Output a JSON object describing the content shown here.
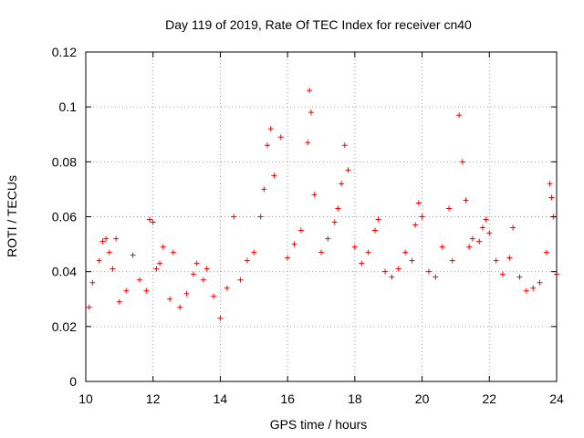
{
  "chart_data": {
    "type": "scatter",
    "title": "Day 119 of 2019, Rate Of TEC Index for receiver cn40",
    "xlabel": "GPS time / hours",
    "ylabel": "ROTI / TECUs",
    "xlim": [
      10,
      24
    ],
    "ylim": [
      0,
      0.12
    ],
    "xticks": [
      10,
      12,
      14,
      16,
      18,
      20,
      22,
      24
    ],
    "xtick_labels": [
      "10",
      "12",
      "14",
      "16",
      "18",
      "20",
      "22",
      "24"
    ],
    "yticks": [
      0,
      0.02,
      0.04,
      0.06,
      0.08,
      0.1,
      0.12
    ],
    "ytick_labels": [
      "0",
      "0.02",
      "0.04",
      "0.06",
      "0.08",
      "0.1",
      "0.12"
    ],
    "grid": true,
    "marker": "plus",
    "series": [
      {
        "name": "ROTI",
        "color": "#ff0000",
        "points": [
          [
            10.1,
            0.027
          ],
          [
            10.2,
            0.036
          ],
          [
            10.4,
            0.044
          ],
          [
            10.5,
            0.051
          ],
          [
            10.6,
            0.052
          ],
          [
            10.7,
            0.047
          ],
          [
            10.8,
            0.041
          ],
          [
            10.9,
            0.052
          ],
          [
            11.0,
            0.029
          ],
          [
            11.2,
            0.033
          ],
          [
            11.4,
            0.046
          ],
          [
            11.6,
            0.037
          ],
          [
            11.8,
            0.033
          ],
          [
            11.9,
            0.059
          ],
          [
            12.0,
            0.058
          ],
          [
            12.1,
            0.041
          ],
          [
            12.2,
            0.043
          ],
          [
            12.3,
            0.049
          ],
          [
            12.5,
            0.03
          ],
          [
            12.6,
            0.047
          ],
          [
            12.8,
            0.027
          ],
          [
            13.0,
            0.032
          ],
          [
            13.2,
            0.039
          ],
          [
            13.3,
            0.043
          ],
          [
            13.5,
            0.037
          ],
          [
            13.6,
            0.041
          ],
          [
            13.8,
            0.031
          ],
          [
            14.0,
            0.023
          ],
          [
            14.2,
            0.034
          ],
          [
            14.4,
            0.06
          ],
          [
            14.6,
            0.037
          ],
          [
            14.8,
            0.044
          ],
          [
            15.0,
            0.047
          ],
          [
            15.2,
            0.06
          ],
          [
            15.3,
            0.07
          ],
          [
            15.4,
            0.086
          ],
          [
            15.5,
            0.092
          ],
          [
            15.6,
            0.075
          ],
          [
            15.8,
            0.089
          ],
          [
            16.0,
            0.045
          ],
          [
            16.2,
            0.05
          ],
          [
            16.4,
            0.055
          ],
          [
            16.6,
            0.087
          ],
          [
            16.65,
            0.106
          ],
          [
            16.7,
            0.098
          ],
          [
            16.8,
            0.068
          ],
          [
            17.0,
            0.047
          ],
          [
            17.2,
            0.052
          ],
          [
            17.4,
            0.058
          ],
          [
            17.5,
            0.063
          ],
          [
            17.6,
            0.072
          ],
          [
            17.7,
            0.086
          ],
          [
            17.8,
            0.077
          ],
          [
            18.0,
            0.049
          ],
          [
            18.2,
            0.043
          ],
          [
            18.4,
            0.047
          ],
          [
            18.6,
            0.055
          ],
          [
            18.7,
            0.059
          ],
          [
            18.9,
            0.04
          ],
          [
            19.1,
            0.038
          ],
          [
            19.3,
            0.041
          ],
          [
            19.5,
            0.047
          ],
          [
            19.7,
            0.044
          ],
          [
            19.8,
            0.057
          ],
          [
            19.9,
            0.065
          ],
          [
            20.0,
            0.06
          ],
          [
            20.2,
            0.04
          ],
          [
            20.4,
            0.038
          ],
          [
            20.6,
            0.049
          ],
          [
            20.8,
            0.063
          ],
          [
            20.9,
            0.044
          ],
          [
            21.1,
            0.097
          ],
          [
            21.2,
            0.08
          ],
          [
            21.3,
            0.066
          ],
          [
            21.4,
            0.049
          ],
          [
            21.5,
            0.052
          ],
          [
            21.7,
            0.051
          ],
          [
            21.8,
            0.056
          ],
          [
            21.9,
            0.059
          ],
          [
            22.0,
            0.054
          ],
          [
            22.2,
            0.044
          ],
          [
            22.4,
            0.039
          ],
          [
            22.6,
            0.045
          ],
          [
            22.7,
            0.056
          ],
          [
            22.9,
            0.038
          ],
          [
            23.1,
            0.033
          ],
          [
            23.3,
            0.034
          ],
          [
            23.5,
            0.036
          ],
          [
            23.7,
            0.047
          ],
          [
            23.8,
            0.072
          ],
          [
            23.85,
            0.067
          ],
          [
            23.9,
            0.06
          ],
          [
            24.0,
            0.039
          ]
        ]
      }
    ]
  }
}
